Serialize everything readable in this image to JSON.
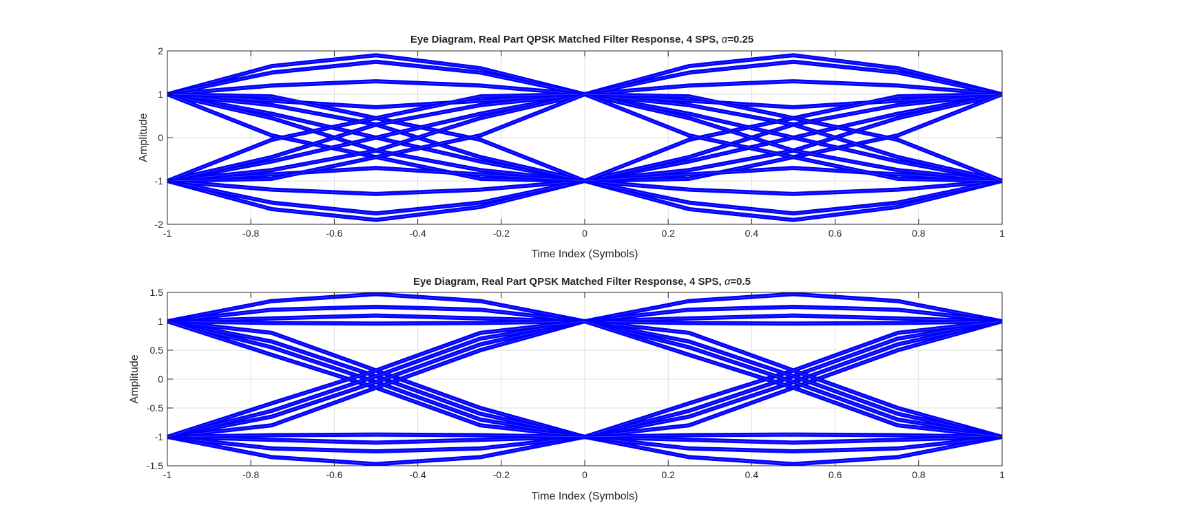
{
  "colors": {
    "trace": "#0000ff",
    "axis": "#262626",
    "grid": "#dfdfdf",
    "background": "#ffffff"
  },
  "chart_data": [
    {
      "type": "line",
      "title_prefix": "Eye Diagram, Real Part QPSK Matched Filter Response, 4 SPS, ",
      "title_symbol": "α",
      "title_suffix": "=0.25",
      "xlabel": "Time Index (Symbols)",
      "ylabel": "Amplitude",
      "xlim": [
        -1,
        1
      ],
      "ylim": [
        -2,
        2
      ],
      "xticks": [
        -1,
        -0.8,
        -0.6,
        -0.4,
        -0.2,
        0,
        0.2,
        0.4,
        0.6,
        0.8,
        1
      ],
      "xtick_labels": [
        "-1",
        "-0.8",
        "-0.6",
        "-0.4",
        "-0.2",
        "0",
        "0.2",
        "0.4",
        "0.6",
        "0.8",
        "1"
      ],
      "yticks": [
        -2,
        -1,
        0,
        1,
        2
      ],
      "ytick_labels": [
        "-2",
        "-1",
        "0",
        "1",
        "2"
      ],
      "grid": true,
      "x": [
        -1,
        -0.75,
        -0.5,
        -0.25,
        0,
        0.25,
        0.5,
        0.75,
        1
      ],
      "series": [
        {
          "values": [
            1,
            1.65,
            1.9,
            1.6,
            1,
            1.65,
            1.9,
            1.6,
            1
          ]
        },
        {
          "values": [
            1,
            1.5,
            1.75,
            1.5,
            1,
            1.5,
            1.75,
            1.5,
            1
          ]
        },
        {
          "values": [
            1,
            1.2,
            1.3,
            1.2,
            1,
            1.2,
            1.3,
            1.2,
            1
          ]
        },
        {
          "values": [
            1,
            0.85,
            0.7,
            0.85,
            1,
            0.85,
            0.7,
            0.85,
            1
          ]
        },
        {
          "values": [
            1,
            0.55,
            0.0,
            -0.55,
            -1,
            -0.55,
            0.0,
            0.55,
            1
          ]
        },
        {
          "values": [
            1,
            0.45,
            -0.3,
            -0.75,
            -1,
            -0.45,
            0.3,
            0.75,
            1
          ]
        },
        {
          "values": [
            1,
            0.75,
            0.3,
            -0.45,
            -1,
            -0.75,
            -0.3,
            0.45,
            1
          ]
        },
        {
          "values": [
            1,
            0.05,
            -0.45,
            -0.95,
            -1,
            -0.05,
            0.45,
            0.95,
            1
          ]
        },
        {
          "values": [
            1,
            0.95,
            0.45,
            -0.05,
            -1,
            -0.95,
            -0.45,
            0.05,
            1
          ]
        },
        {
          "values": [
            -1,
            -1.65,
            -1.9,
            -1.6,
            -1,
            -1.65,
            -1.9,
            -1.6,
            -1
          ]
        },
        {
          "values": [
            -1,
            -1.5,
            -1.75,
            -1.5,
            -1,
            -1.5,
            -1.75,
            -1.5,
            -1
          ]
        },
        {
          "values": [
            -1,
            -1.2,
            -1.3,
            -1.2,
            -1,
            -1.2,
            -1.3,
            -1.2,
            -1
          ]
        },
        {
          "values": [
            -1,
            -0.85,
            -0.7,
            -0.85,
            -1,
            -0.85,
            -0.7,
            -0.85,
            -1
          ]
        },
        {
          "values": [
            -1,
            -0.55,
            0.0,
            0.55,
            1,
            0.55,
            0.0,
            -0.55,
            -1
          ]
        },
        {
          "values": [
            -1,
            -0.45,
            0.3,
            0.75,
            1,
            0.45,
            -0.3,
            -0.75,
            -1
          ]
        },
        {
          "values": [
            -1,
            -0.75,
            -0.3,
            0.45,
            1,
            0.75,
            0.3,
            -0.45,
            -1
          ]
        },
        {
          "values": [
            -1,
            -0.05,
            0.45,
            0.95,
            1,
            0.05,
            -0.45,
            -0.95,
            -1
          ]
        },
        {
          "values": [
            -1,
            -0.95,
            -0.45,
            0.05,
            1,
            0.95,
            0.45,
            -0.05,
            -1
          ]
        }
      ]
    },
    {
      "type": "line",
      "title_prefix": "Eye Diagram, Real Part QPSK Matched Filter Response, 4 SPS, ",
      "title_symbol": "α",
      "title_suffix": "=0.5",
      "xlabel": "Time Index (Symbols)",
      "ylabel": "Amplitude",
      "xlim": [
        -1,
        1
      ],
      "ylim": [
        -1.5,
        1.5
      ],
      "xticks": [
        -1,
        -0.8,
        -0.6,
        -0.4,
        -0.2,
        0,
        0.2,
        0.4,
        0.6,
        0.8,
        1
      ],
      "xtick_labels": [
        "-1",
        "-0.8",
        "-0.6",
        "-0.4",
        "-0.2",
        "0",
        "0.2",
        "0.4",
        "0.6",
        "0.8",
        "1"
      ],
      "yticks": [
        -1.5,
        -1,
        -0.5,
        0,
        0.5,
        1,
        1.5
      ],
      "ytick_labels": [
        "-1.5",
        "-1",
        "-0.5",
        "0",
        "0.5",
        "1",
        "1.5"
      ],
      "grid": true,
      "x": [
        -1,
        -0.75,
        -0.5,
        -0.25,
        0,
        0.25,
        0.5,
        0.75,
        1
      ],
      "series": [
        {
          "values": [
            1,
            1.35,
            1.47,
            1.35,
            1,
            1.35,
            1.47,
            1.35,
            1
          ]
        },
        {
          "values": [
            1,
            1.2,
            1.25,
            1.2,
            1,
            1.2,
            1.25,
            1.2,
            1
          ]
        },
        {
          "values": [
            1,
            1.05,
            1.1,
            1.05,
            1,
            1.05,
            1.1,
            1.05,
            1
          ]
        },
        {
          "values": [
            1,
            0.97,
            0.96,
            0.97,
            1,
            0.97,
            0.96,
            0.97,
            1
          ]
        },
        {
          "values": [
            1,
            0.8,
            0.15,
            -0.5,
            -1,
            -0.8,
            -0.15,
            0.5,
            1
          ]
        },
        {
          "values": [
            1,
            0.65,
            0.05,
            -0.6,
            -1,
            -0.65,
            -0.05,
            0.6,
            1
          ]
        },
        {
          "values": [
            1,
            0.55,
            -0.05,
            -0.7,
            -1,
            -0.55,
            0.05,
            0.7,
            1
          ]
        },
        {
          "values": [
            1,
            0.42,
            -0.15,
            -0.8,
            -1,
            -0.42,
            0.15,
            0.8,
            1
          ]
        },
        {
          "values": [
            -1,
            -1.35,
            -1.47,
            -1.35,
            -1,
            -1.35,
            -1.47,
            -1.35,
            -1
          ]
        },
        {
          "values": [
            -1,
            -1.2,
            -1.25,
            -1.2,
            -1,
            -1.2,
            -1.25,
            -1.2,
            -1
          ]
        },
        {
          "values": [
            -1,
            -1.05,
            -1.1,
            -1.05,
            -1,
            -1.05,
            -1.1,
            -1.05,
            -1
          ]
        },
        {
          "values": [
            -1,
            -0.97,
            -0.96,
            -0.97,
            -1,
            -0.97,
            -0.96,
            -0.97,
            -1
          ]
        },
        {
          "values": [
            -1,
            -0.8,
            -0.15,
            0.5,
            1,
            0.8,
            0.15,
            -0.5,
            -1
          ]
        },
        {
          "values": [
            -1,
            -0.65,
            -0.05,
            0.6,
            1,
            0.65,
            0.05,
            -0.6,
            -1
          ]
        },
        {
          "values": [
            -1,
            -0.55,
            0.05,
            0.7,
            1,
            0.55,
            -0.05,
            -0.7,
            -1
          ]
        },
        {
          "values": [
            -1,
            -0.42,
            0.15,
            0.8,
            1,
            0.42,
            -0.15,
            -0.8,
            -1
          ]
        }
      ]
    }
  ]
}
